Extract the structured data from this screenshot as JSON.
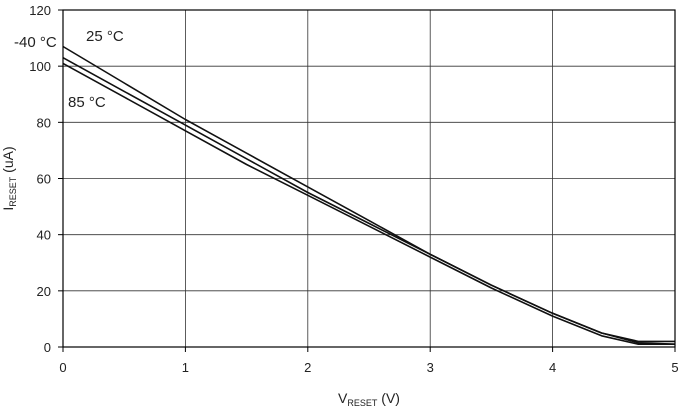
{
  "chart_data": {
    "type": "line",
    "xlabel": {
      "main": "V",
      "sub": "RESET",
      "suffix": " (V)"
    },
    "ylabel": {
      "main": "I",
      "sub": "RESET",
      "suffix": " (uA)"
    },
    "xlim": [
      0,
      5
    ],
    "ylim": [
      0,
      120
    ],
    "x_ticks": [
      "0",
      "1",
      "2",
      "3",
      "4",
      "5"
    ],
    "y_ticks": [
      "0",
      "20",
      "40",
      "60",
      "80",
      "100",
      "120"
    ],
    "grid": true,
    "series": [
      {
        "name": "-40 °C",
        "x": [
          0,
          0.5,
          1,
          1.5,
          2,
          2.5,
          3,
          3.5,
          4,
          4.4,
          4.7,
          5
        ],
        "y": [
          107,
          94,
          81,
          69,
          57,
          45,
          33,
          22,
          12,
          5,
          2,
          2
        ]
      },
      {
        "name": "25 °C",
        "x": [
          0,
          0.5,
          1,
          1.5,
          2,
          2.5,
          3,
          3.5,
          4,
          4.4,
          4.7,
          5
        ],
        "y": [
          103,
          91,
          79,
          67,
          55,
          44,
          33,
          22,
          12,
          5,
          1.5,
          1
        ]
      },
      {
        "name": "85 °C",
        "x": [
          0,
          0.5,
          1,
          1.5,
          2,
          2.5,
          3,
          3.5,
          4,
          4.4,
          4.7,
          5
        ],
        "y": [
          101,
          89,
          77,
          65,
          54,
          43,
          32,
          21,
          11,
          4,
          1,
          1
        ]
      }
    ],
    "annotations": [
      {
        "text": "-40 °C",
        "series": "-40 °C"
      },
      {
        "text": "25 °C",
        "series": "25 °C"
      },
      {
        "text": "85 °C",
        "series": "85 °C"
      }
    ]
  }
}
